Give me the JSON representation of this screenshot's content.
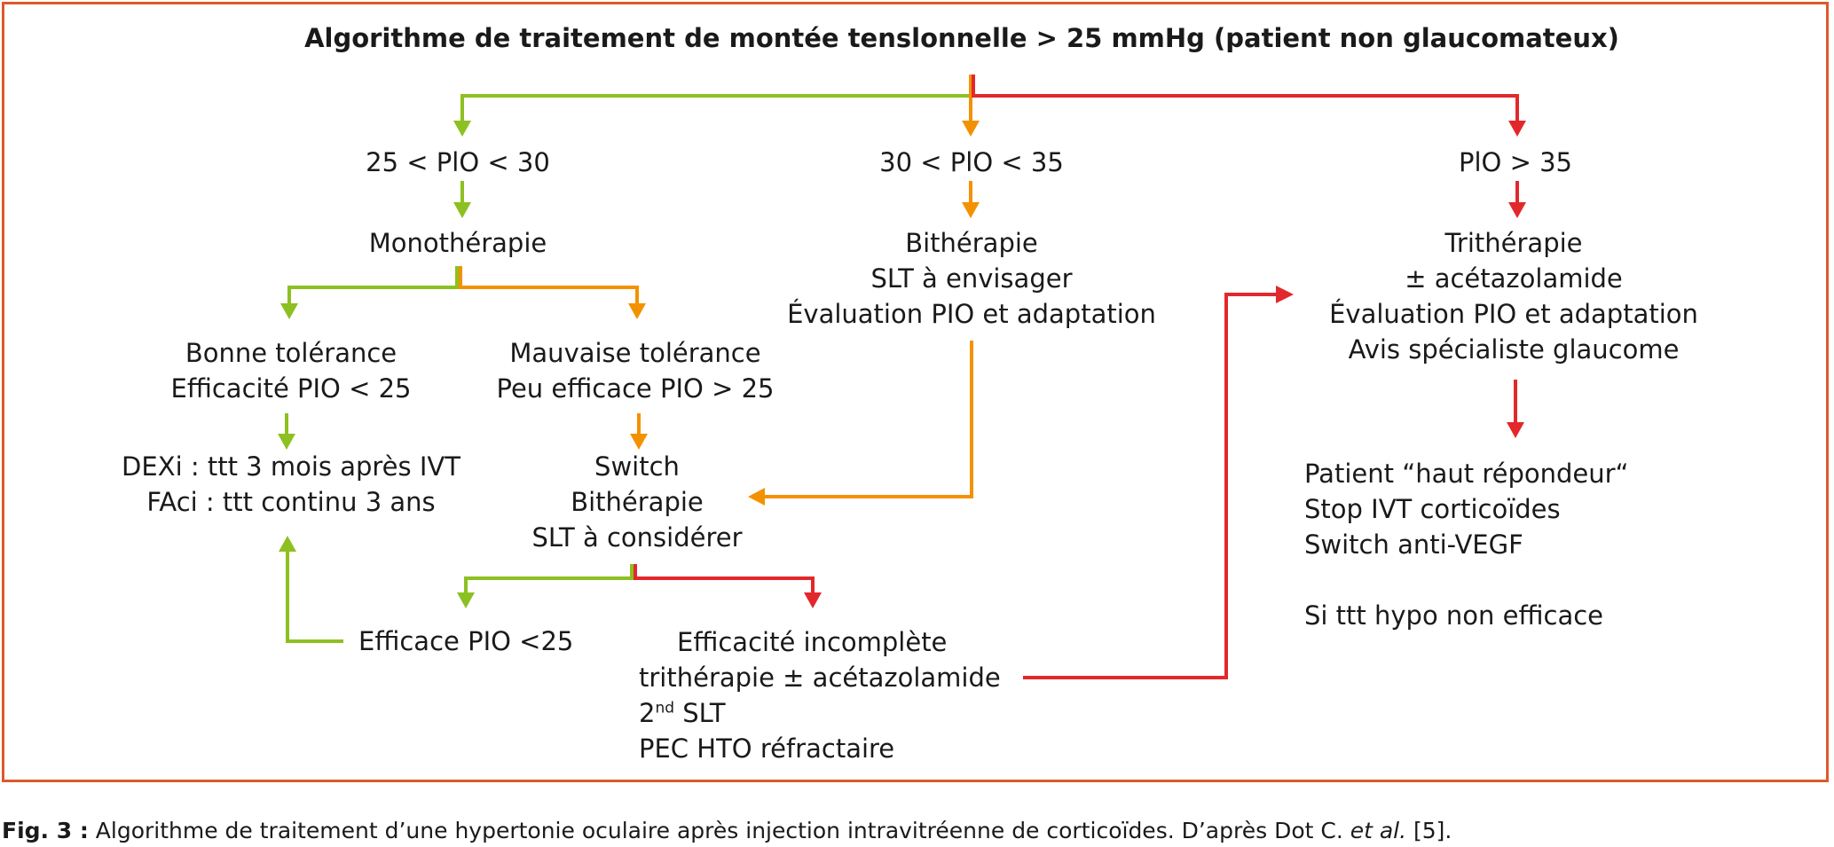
{
  "title": "Algorithme de traitement de montée tenslonnelle > 25 mmHg (patient non glaucomateux)",
  "colors": {
    "frame": "#dc5a2c",
    "green": "#8dc021",
    "orange": "#f39200",
    "red": "#e3282c"
  },
  "nodes": {
    "pio_25_30": "25 < PlO < 30",
    "pio_30_35": "30 < PlO < 35",
    "pio_gt35": "PlO > 35",
    "monotherapie": "Monothérapie",
    "bitherapie": [
      "Bithérapie",
      "SLT à envisager",
      "Évaluation PIO et adaptation"
    ],
    "tritherapie": [
      "Trithérapie",
      "± acétazolamide",
      "Évaluation PIO et adaptation",
      "Avis spécialiste glaucome"
    ],
    "bonne_tolerance": [
      "Bonne tolérance",
      "Efficacité PIO < 25"
    ],
    "mauvaise_tolerance": [
      "Mauvaise tolérance",
      "Peu efficace PIO > 25"
    ],
    "dexi": [
      "DEXi : ttt 3 mois après IVT",
      "FAci : ttt continu 3 ans"
    ],
    "switch": [
      "Switch",
      "Bithérapie",
      "SLT à considérer"
    ],
    "efficace": "Efficace PIO <25",
    "efficacite_incomplete": {
      "line1": "Efficacité incomplète",
      "line2": "trithérapie ± acétazolamide",
      "line3_base": "2",
      "line3_sup": "nd",
      "line3_rest": " SLT",
      "line4": "PEC HTO réfractaire"
    },
    "haut_repondeur": [
      "Patient “haut répondeur“",
      "Stop IVT corticoïdes",
      "Switch anti-VEGF",
      "",
      "Si ttt hypo non efficace"
    ]
  },
  "caption": {
    "label": "Fig. 3 :",
    "text": " Algorithme de traitement d’une hypertonie oculaire après injection intravitréenne de corticoïdes. D’après Dot C. ",
    "italic": "et al.",
    "ref": " [5]."
  }
}
